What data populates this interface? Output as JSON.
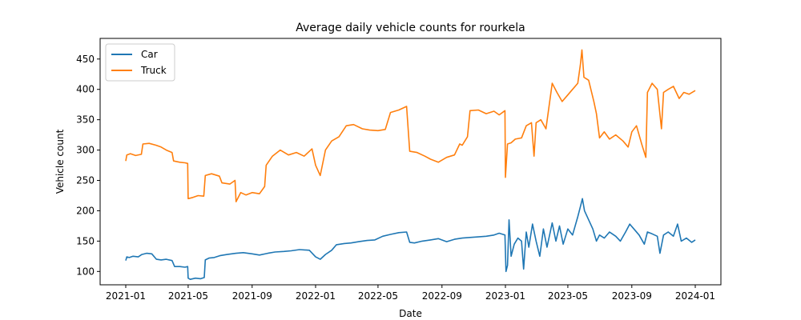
{
  "chart_data": {
    "type": "line",
    "title": "Average daily vehicle counts for rourkela",
    "xlabel": "Date",
    "ylabel": "Vehicle count",
    "xlim": [
      "2021-01-01",
      "2024-01-01"
    ],
    "ylim": [
      78,
      484
    ],
    "x_ticks": [
      "2021-01",
      "2021-05",
      "2021-09",
      "2022-01",
      "2022-05",
      "2022-09",
      "2023-01",
      "2023-05",
      "2023-09",
      "2024-01"
    ],
    "y_ticks": [
      100,
      150,
      200,
      250,
      300,
      350,
      400,
      450
    ],
    "grid": false,
    "legend": "top-left",
    "series": [
      {
        "name": "Car",
        "color": "#1f77b4",
        "points": [
          [
            "2021-01-01",
            118
          ],
          [
            "2021-01-03",
            124
          ],
          [
            "2021-01-08",
            123
          ],
          [
            "2021-01-15",
            125
          ],
          [
            "2021-01-25",
            124
          ],
          [
            "2021-02-01",
            128
          ],
          [
            "2021-02-10",
            130
          ],
          [
            "2021-02-20",
            129
          ],
          [
            "2021-03-01",
            120
          ],
          [
            "2021-03-10",
            119
          ],
          [
            "2021-03-20",
            120
          ],
          [
            "2021-03-31",
            118
          ],
          [
            "2021-04-05",
            108
          ],
          [
            "2021-04-15",
            108
          ],
          [
            "2021-04-25",
            107
          ],
          [
            "2021-04-30",
            108
          ],
          [
            "2021-05-01",
            89
          ],
          [
            "2021-05-05",
            87
          ],
          [
            "2021-05-15",
            89
          ],
          [
            "2021-05-25",
            88
          ],
          [
            "2021-06-01",
            90
          ],
          [
            "2021-06-03",
            119
          ],
          [
            "2021-06-10",
            122
          ],
          [
            "2021-06-20",
            123
          ],
          [
            "2021-07-01",
            126
          ],
          [
            "2021-07-15",
            128
          ],
          [
            "2021-08-01",
            130
          ],
          [
            "2021-08-15",
            131
          ],
          [
            "2021-09-01",
            129
          ],
          [
            "2021-09-15",
            127
          ],
          [
            "2021-10-01",
            130
          ],
          [
            "2021-10-15",
            132
          ],
          [
            "2021-11-01",
            133
          ],
          [
            "2021-11-15",
            134
          ],
          [
            "2021-12-01",
            136
          ],
          [
            "2021-12-20",
            135
          ],
          [
            "2022-01-01",
            124
          ],
          [
            "2022-01-10",
            120
          ],
          [
            "2022-01-20",
            128
          ],
          [
            "2022-02-01",
            135
          ],
          [
            "2022-02-10",
            144
          ],
          [
            "2022-02-25",
            146
          ],
          [
            "2022-03-10",
            147
          ],
          [
            "2022-03-25",
            149
          ],
          [
            "2022-04-10",
            151
          ],
          [
            "2022-04-25",
            152
          ],
          [
            "2022-05-10",
            158
          ],
          [
            "2022-05-25",
            161
          ],
          [
            "2022-06-10",
            164
          ],
          [
            "2022-06-25",
            165
          ],
          [
            "2022-07-01",
            148
          ],
          [
            "2022-07-10",
            147
          ],
          [
            "2022-07-25",
            150
          ],
          [
            "2022-08-10",
            152
          ],
          [
            "2022-08-25",
            154
          ],
          [
            "2022-09-10",
            149
          ],
          [
            "2022-09-25",
            153
          ],
          [
            "2022-10-10",
            155
          ],
          [
            "2022-10-25",
            156
          ],
          [
            "2022-11-10",
            157
          ],
          [
            "2022-11-25",
            158
          ],
          [
            "2022-12-10",
            160
          ],
          [
            "2022-12-20",
            163
          ],
          [
            "2022-12-31",
            160
          ],
          [
            "2023-01-02",
            100
          ],
          [
            "2023-01-05",
            110
          ],
          [
            "2023-01-08",
            185
          ],
          [
            "2023-01-12",
            125
          ],
          [
            "2023-01-18",
            145
          ],
          [
            "2023-01-25",
            155
          ],
          [
            "2023-02-01",
            150
          ],
          [
            "2023-02-05",
            104
          ],
          [
            "2023-02-10",
            165
          ],
          [
            "2023-02-15",
            140
          ],
          [
            "2023-02-22",
            178
          ],
          [
            "2023-03-01",
            150
          ],
          [
            "2023-03-08",
            125
          ],
          [
            "2023-03-15",
            170
          ],
          [
            "2023-03-22",
            140
          ],
          [
            "2023-04-01",
            180
          ],
          [
            "2023-04-08",
            150
          ],
          [
            "2023-04-15",
            175
          ],
          [
            "2023-04-22",
            145
          ],
          [
            "2023-05-01",
            170
          ],
          [
            "2023-05-10",
            160
          ],
          [
            "2023-05-20",
            190
          ],
          [
            "2023-05-26",
            210
          ],
          [
            "2023-05-29",
            220
          ],
          [
            "2023-06-02",
            200
          ],
          [
            "2023-06-10",
            185
          ],
          [
            "2023-06-18",
            170
          ],
          [
            "2023-06-25",
            150
          ],
          [
            "2023-07-01",
            160
          ],
          [
            "2023-07-10",
            155
          ],
          [
            "2023-07-20",
            165
          ],
          [
            "2023-08-01",
            158
          ],
          [
            "2023-08-10",
            150
          ],
          [
            "2023-08-20",
            165
          ],
          [
            "2023-08-28",
            178
          ],
          [
            "2023-09-05",
            170
          ],
          [
            "2023-09-15",
            160
          ],
          [
            "2023-09-25",
            145
          ],
          [
            "2023-10-01",
            165
          ],
          [
            "2023-10-10",
            162
          ],
          [
            "2023-10-20",
            158
          ],
          [
            "2023-10-25",
            130
          ],
          [
            "2023-11-01",
            160
          ],
          [
            "2023-11-10",
            165
          ],
          [
            "2023-11-20",
            158
          ],
          [
            "2023-11-28",
            178
          ],
          [
            "2023-12-05",
            150
          ],
          [
            "2023-12-15",
            155
          ],
          [
            "2023-12-25",
            148
          ],
          [
            "2024-01-01",
            152
          ]
        ]
      },
      {
        "name": "Truck",
        "color": "#ff7f0e",
        "points": [
          [
            "2021-01-01",
            282
          ],
          [
            "2021-01-03",
            292
          ],
          [
            "2021-01-10",
            294
          ],
          [
            "2021-01-20",
            291
          ],
          [
            "2021-01-31",
            293
          ],
          [
            "2021-02-03",
            310
          ],
          [
            "2021-02-15",
            311
          ],
          [
            "2021-02-28",
            308
          ],
          [
            "2021-03-10",
            305
          ],
          [
            "2021-03-20",
            300
          ],
          [
            "2021-03-31",
            296
          ],
          [
            "2021-04-03",
            282
          ],
          [
            "2021-04-15",
            280
          ],
          [
            "2021-04-25",
            279
          ],
          [
            "2021-04-30",
            278
          ],
          [
            "2021-05-01",
            220
          ],
          [
            "2021-05-10",
            222
          ],
          [
            "2021-05-20",
            225
          ],
          [
            "2021-05-31",
            224
          ],
          [
            "2021-06-03",
            258
          ],
          [
            "2021-06-15",
            261
          ],
          [
            "2021-06-30",
            257
          ],
          [
            "2021-07-05",
            246
          ],
          [
            "2021-07-20",
            244
          ],
          [
            "2021-07-30",
            250
          ],
          [
            "2021-08-01",
            215
          ],
          [
            "2021-08-10",
            230
          ],
          [
            "2021-08-20",
            226
          ],
          [
            "2021-09-01",
            230
          ],
          [
            "2021-09-15",
            228
          ],
          [
            "2021-09-25",
            240
          ],
          [
            "2021-09-28",
            275
          ],
          [
            "2021-10-10",
            290
          ],
          [
            "2021-10-25",
            300
          ],
          [
            "2021-11-10",
            292
          ],
          [
            "2021-11-25",
            296
          ],
          [
            "2021-12-10",
            290
          ],
          [
            "2021-12-25",
            302
          ],
          [
            "2022-01-01",
            275
          ],
          [
            "2022-01-10",
            258
          ],
          [
            "2022-01-20",
            300
          ],
          [
            "2022-02-01",
            315
          ],
          [
            "2022-02-15",
            322
          ],
          [
            "2022-03-01",
            340
          ],
          [
            "2022-03-15",
            342
          ],
          [
            "2022-04-01",
            335
          ],
          [
            "2022-04-15",
            333
          ],
          [
            "2022-05-01",
            332
          ],
          [
            "2022-05-15",
            334
          ],
          [
            "2022-05-25",
            362
          ],
          [
            "2022-06-10",
            366
          ],
          [
            "2022-06-25",
            372
          ],
          [
            "2022-07-01",
            298
          ],
          [
            "2022-07-15",
            296
          ],
          [
            "2022-07-30",
            290
          ],
          [
            "2022-08-10",
            285
          ],
          [
            "2022-08-25",
            280
          ],
          [
            "2022-09-10",
            288
          ],
          [
            "2022-09-25",
            292
          ],
          [
            "2022-10-05",
            310
          ],
          [
            "2022-10-10",
            308
          ],
          [
            "2022-10-20",
            322
          ],
          [
            "2022-10-25",
            365
          ],
          [
            "2022-11-10",
            366
          ],
          [
            "2022-11-25",
            360
          ],
          [
            "2022-12-10",
            364
          ],
          [
            "2022-12-20",
            358
          ],
          [
            "2022-12-31",
            365
          ],
          [
            "2023-01-01",
            255
          ],
          [
            "2023-01-05",
            310
          ],
          [
            "2023-01-12",
            312
          ],
          [
            "2023-01-20",
            318
          ],
          [
            "2023-02-01",
            320
          ],
          [
            "2023-02-10",
            340
          ],
          [
            "2023-02-20",
            345
          ],
          [
            "2023-02-25",
            290
          ],
          [
            "2023-03-01",
            345
          ],
          [
            "2023-03-10",
            350
          ],
          [
            "2023-03-20",
            335
          ],
          [
            "2023-04-01",
            410
          ],
          [
            "2023-04-10",
            395
          ],
          [
            "2023-04-20",
            380
          ],
          [
            "2023-04-30",
            390
          ],
          [
            "2023-05-10",
            400
          ],
          [
            "2023-05-20",
            410
          ],
          [
            "2023-05-25",
            440
          ],
          [
            "2023-05-28",
            465
          ],
          [
            "2023-06-01",
            420
          ],
          [
            "2023-06-10",
            415
          ],
          [
            "2023-06-20",
            380
          ],
          [
            "2023-06-25",
            360
          ],
          [
            "2023-07-01",
            320
          ],
          [
            "2023-07-10",
            330
          ],
          [
            "2023-07-20",
            318
          ],
          [
            "2023-08-01",
            325
          ],
          [
            "2023-08-15",
            315
          ],
          [
            "2023-08-25",
            305
          ],
          [
            "2023-09-01",
            330
          ],
          [
            "2023-09-10",
            340
          ],
          [
            "2023-09-20",
            310
          ],
          [
            "2023-09-28",
            288
          ],
          [
            "2023-10-01",
            395
          ],
          [
            "2023-10-10",
            410
          ],
          [
            "2023-10-20",
            400
          ],
          [
            "2023-10-28",
            335
          ],
          [
            "2023-11-01",
            395
          ],
          [
            "2023-11-10",
            400
          ],
          [
            "2023-11-20",
            405
          ],
          [
            "2023-12-01",
            385
          ],
          [
            "2023-12-10",
            395
          ],
          [
            "2023-12-20",
            392
          ],
          [
            "2024-01-01",
            398
          ]
        ]
      }
    ]
  }
}
